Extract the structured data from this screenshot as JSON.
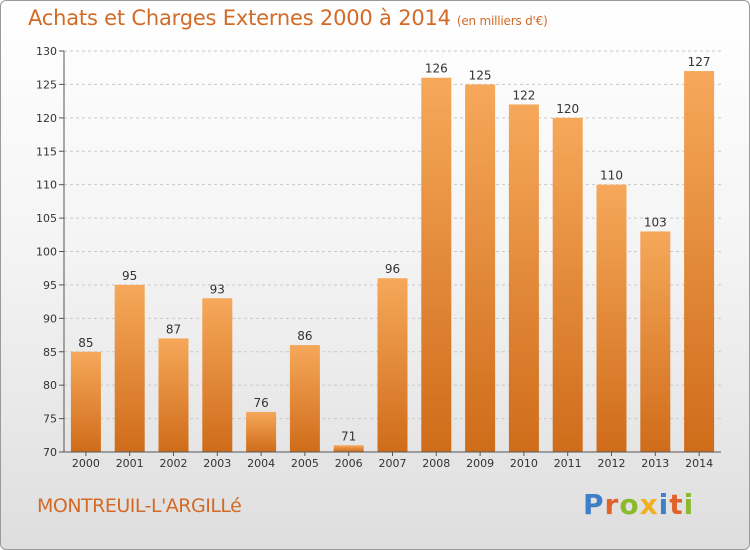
{
  "header": {
    "title": "Achats et Charges Externes 2000 à 2014",
    "unit": "(en milliers d'€)"
  },
  "location": "MONTREUIL-L'ARGILLé",
  "logo": {
    "letters": [
      {
        "char": "P",
        "color": "#3f7fc8"
      },
      {
        "char": "r",
        "color": "#e0642a"
      },
      {
        "char": "o",
        "color": "#8bbb2a"
      },
      {
        "char": "x",
        "color": "#f0b020"
      },
      {
        "char": "i",
        "color": "#3f7fc8"
      },
      {
        "char": "t",
        "color": "#e0642a"
      },
      {
        "char": "i",
        "color": "#8bbb2a"
      }
    ]
  },
  "colors": {
    "bar_top": "#f6a85a",
    "bar_bottom": "#cf6c1a",
    "accent": "#d36a26"
  },
  "chart_data": {
    "type": "bar",
    "categories": [
      "2000",
      "2001",
      "2002",
      "2003",
      "2004",
      "2005",
      "2006",
      "2007",
      "2008",
      "2009",
      "2010",
      "2011",
      "2012",
      "2013",
      "2014"
    ],
    "values": [
      85,
      95,
      87,
      93,
      76,
      86,
      71,
      96,
      126,
      125,
      122,
      120,
      110,
      103,
      127
    ],
    "title": "Achats et Charges Externes 2000 à 2014",
    "xlabel": "",
    "ylabel": "",
    "ylim": [
      70,
      130
    ],
    "yticks": [
      70,
      75,
      80,
      85,
      90,
      95,
      100,
      105,
      110,
      115,
      120,
      125,
      130
    ],
    "grid": true,
    "data_labels": true
  }
}
